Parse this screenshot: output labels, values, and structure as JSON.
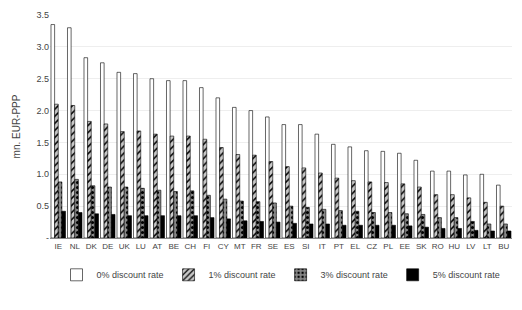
{
  "chart_data": {
    "type": "bar",
    "categories": [
      "IE",
      "NL",
      "DK",
      "DE",
      "UK",
      "LU",
      "AT",
      "BE",
      "CH",
      "FI",
      "CY",
      "MT",
      "FR",
      "SE",
      "ES",
      "SI",
      "IT",
      "PT",
      "EL",
      "CZ",
      "PL",
      "EE",
      "SK",
      "RO",
      "HU",
      "LV",
      "LT",
      "BU"
    ],
    "series": [
      {
        "name": "0% discount rate",
        "color": "#ffffff",
        "values": [
          3.35,
          3.3,
          2.83,
          2.75,
          2.6,
          2.58,
          2.5,
          2.47,
          2.47,
          2.36,
          2.2,
          2.05,
          2.0,
          1.9,
          1.78,
          1.78,
          1.63,
          1.47,
          1.43,
          1.37,
          1.36,
          1.33,
          1.22,
          1.05,
          1.05,
          0.99,
          1.0,
          0.83
        ]
      },
      {
        "name": "1% discount rate",
        "color": "#c8c8c8",
        "values": [
          2.1,
          2.08,
          1.83,
          1.79,
          1.67,
          1.68,
          1.63,
          1.6,
          1.6,
          1.55,
          1.42,
          1.31,
          1.3,
          1.2,
          1.12,
          1.1,
          1.02,
          0.94,
          0.9,
          0.88,
          0.87,
          0.85,
          0.8,
          0.68,
          0.68,
          0.63,
          0.56,
          0.5
        ]
      },
      {
        "name": "3% discount rate",
        "color": "#888888",
        "values": [
          0.88,
          0.92,
          0.82,
          0.8,
          0.8,
          0.78,
          0.75,
          0.73,
          0.74,
          0.67,
          0.61,
          0.58,
          0.57,
          0.55,
          0.5,
          0.48,
          0.45,
          0.43,
          0.42,
          0.4,
          0.4,
          0.38,
          0.37,
          0.32,
          0.32,
          0.26,
          0.22,
          0.22
        ]
      },
      {
        "name": "5% discount rate",
        "color": "#000000",
        "values": [
          0.42,
          0.4,
          0.38,
          0.37,
          0.35,
          0.35,
          0.35,
          0.35,
          0.35,
          0.32,
          0.3,
          0.27,
          0.26,
          0.25,
          0.23,
          0.22,
          0.22,
          0.2,
          0.2,
          0.2,
          0.2,
          0.19,
          0.17,
          0.15,
          0.15,
          0.12,
          0.11,
          0.11
        ]
      }
    ],
    "ylabel": "mn. EUR-PPP",
    "ylim": [
      0,
      3.5
    ],
    "yticks": [
      {
        "value": 0,
        "label": "-"
      },
      0.5,
      {
        "value": 1,
        "label": "1.0"
      },
      1.5,
      {
        "value": 2,
        "label": "2.0"
      },
      2.5,
      {
        "value": 3,
        "label": "3.0"
      },
      3.5
    ],
    "grid": true,
    "legend": "bottom"
  }
}
